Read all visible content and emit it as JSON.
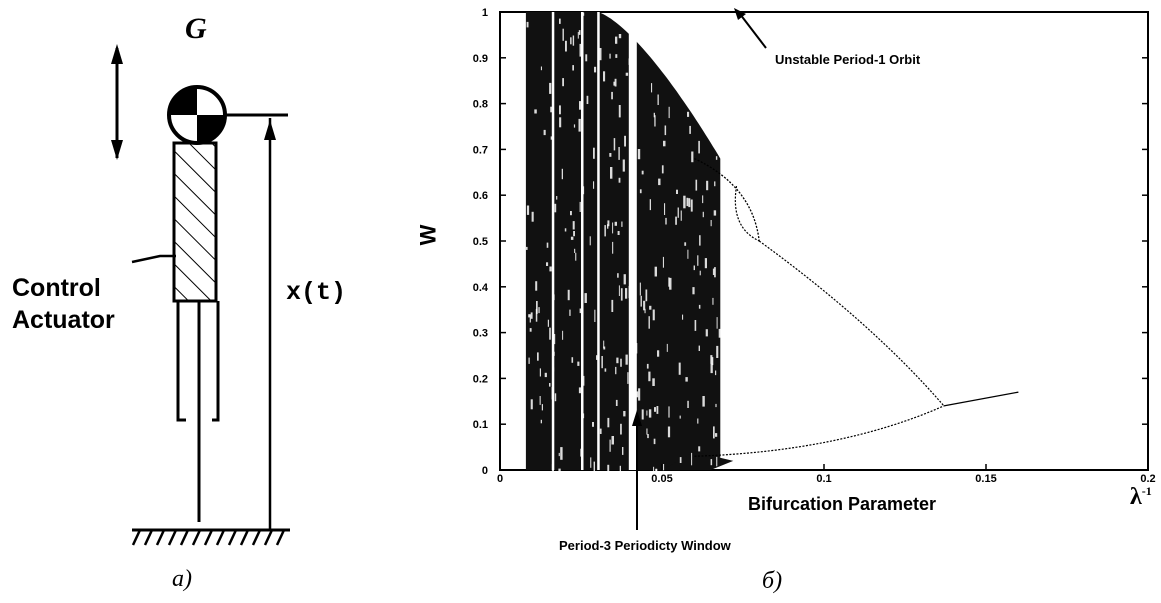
{
  "left_panel": {
    "mass_label": "G",
    "actuator_label_line1": "Control",
    "actuator_label_line2": "Actuator",
    "displacement_label": "x(t)",
    "caption": "a)"
  },
  "right_panel": {
    "ylabel": "W",
    "xlabel": "Bifurcation Parameter",
    "x_symbol": "λ",
    "x_symbol_sup": "-1",
    "annotation_top": "Unstable Period-1 Orbit",
    "annotation_bottom": "Period-3 Periodicty Window",
    "caption": "б)"
  },
  "chart_data": {
    "type": "scatter",
    "xlabel": "Bifurcation Parameter",
    "ylabel": "W",
    "xlim": [
      0,
      0.2
    ],
    "ylim": [
      0,
      1
    ],
    "xticks": [
      "0",
      "0.05",
      "0.1",
      "0.15",
      "0.2"
    ],
    "yticks": [
      "0",
      "0.1",
      "0.2",
      "0.3",
      "0.4",
      "0.5",
      "0.6",
      "0.7",
      "0.8",
      "0.9",
      "1"
    ],
    "grid": false,
    "legend": "none",
    "period1_branch": {
      "x": [
        0.06,
        0.08
      ],
      "y": [
        0.68,
        0.5
      ]
    },
    "period2_branches": {
      "upper": {
        "x": [
          0.08,
          0.137
        ],
        "y": [
          0.5,
          0.14
        ]
      },
      "lower": {
        "x": [
          0.06,
          0.137
        ],
        "y": [
          0.03,
          0.14
        ]
      }
    },
    "stable_branch": {
      "x": [
        0.137,
        0.16
      ],
      "y": [
        0.14,
        0.17
      ]
    },
    "chaotic_region_x": [
      0.008,
      0.068
    ],
    "period3_window_x": 0.041
  }
}
